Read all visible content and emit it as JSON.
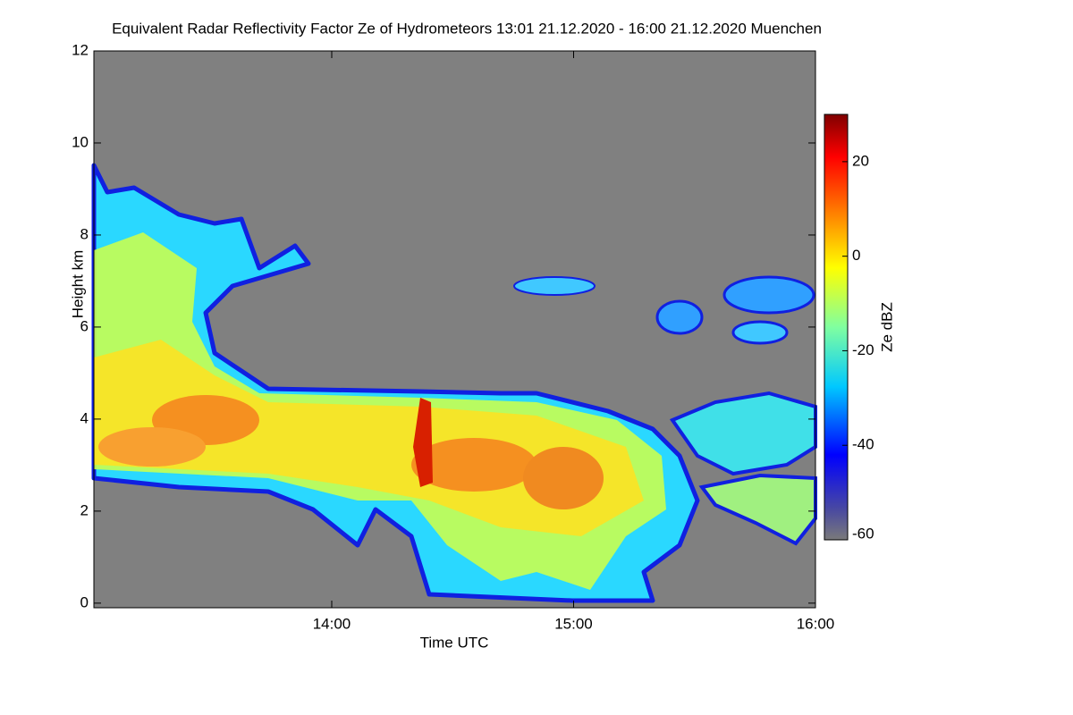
{
  "chart_data": {
    "type": "heatmap",
    "title": "Equivalent Radar Reflectivity Factor Ze of Hydrometeors   13:01 21.12.2020 - 16:00 21.12.2020 Muenchen",
    "x_label": "Time UTC",
    "y_label": "Height km",
    "xlim": [
      781,
      960
    ],
    "xticks": [
      {
        "value": 840,
        "label": "14:00"
      },
      {
        "value": 900,
        "label": "15:00"
      },
      {
        "value": 960,
        "label": "16:00"
      }
    ],
    "ylim": [
      -0.1,
      12
    ],
    "yticks": [
      0,
      2,
      4,
      6,
      8,
      10,
      12
    ],
    "colorbar": {
      "label": "Ze dBZ",
      "lim": [
        -60,
        30
      ],
      "ticks": [
        -60,
        -40,
        -20,
        0,
        20
      ]
    }
  }
}
